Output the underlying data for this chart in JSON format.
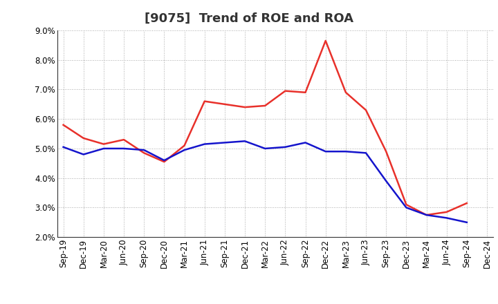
{
  "title": "[9075]  Trend of ROE and ROA",
  "labels": [
    "Sep-19",
    "Dec-19",
    "Mar-20",
    "Jun-20",
    "Sep-20",
    "Dec-20",
    "Mar-21",
    "Jun-21",
    "Sep-21",
    "Dec-21",
    "Mar-22",
    "Jun-22",
    "Sep-22",
    "Dec-22",
    "Mar-23",
    "Jun-23",
    "Sep-23",
    "Dec-23",
    "Mar-24",
    "Jun-24",
    "Sep-24",
    "Dec-24"
  ],
  "ROE": [
    5.8,
    5.35,
    5.15,
    5.3,
    4.85,
    4.55,
    5.1,
    6.6,
    6.5,
    6.4,
    6.45,
    6.95,
    6.9,
    8.65,
    6.9,
    6.3,
    4.9,
    3.1,
    2.75,
    2.85,
    3.15,
    null
  ],
  "ROA": [
    5.05,
    4.8,
    5.0,
    5.0,
    4.95,
    4.6,
    4.95,
    5.15,
    5.2,
    5.25,
    5.0,
    5.05,
    5.2,
    4.9,
    4.9,
    4.85,
    3.9,
    3.0,
    2.75,
    2.65,
    2.5,
    null
  ],
  "roe_color": "#e8302a",
  "roa_color": "#1414cc",
  "ylim": [
    2.0,
    9.0
  ],
  "yticks": [
    2.0,
    3.0,
    4.0,
    5.0,
    6.0,
    7.0,
    8.0,
    9.0
  ],
  "background_color": "#ffffff",
  "grid_color": "#aaaaaa",
  "title_fontsize": 13,
  "axis_fontsize": 8.5,
  "legend_fontsize": 10,
  "linewidth": 1.8
}
